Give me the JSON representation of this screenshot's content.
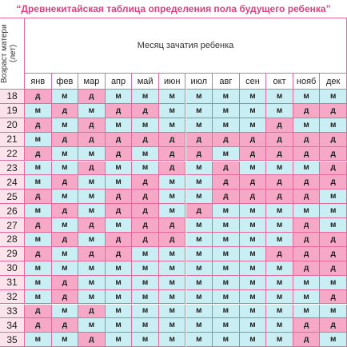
{
  "header": {
    "title": "“Древнекитайская таблица определения пола будущего ребенка”"
  },
  "table": {
    "row_header": "Возраст матери (лет)",
    "column_header": "Месяц зачатия ребенка",
    "months": [
      "янв",
      "фев",
      "мар",
      "апр",
      "май",
      "июн",
      "июл",
      "авг",
      "сен",
      "окт",
      "нояб",
      "дек"
    ],
    "rows": [
      {
        "age": 18,
        "cells": [
          "д",
          "м",
          "д",
          "м",
          "м",
          "м",
          "м",
          "м",
          "м",
          "м",
          "м",
          "м"
        ]
      },
      {
        "age": 19,
        "cells": [
          "м",
          "д",
          "м",
          "д",
          "д",
          "м",
          "м",
          "м",
          "м",
          "м",
          "д",
          "д"
        ]
      },
      {
        "age": 20,
        "cells": [
          "д",
          "м",
          "д",
          "м",
          "м",
          "м",
          "м",
          "м",
          "м",
          "д",
          "м",
          "м"
        ]
      },
      {
        "age": 21,
        "cells": [
          "м",
          "д",
          "д",
          "д",
          "д",
          "д",
          "д",
          "д",
          "д",
          "д",
          "д",
          "д"
        ]
      },
      {
        "age": 22,
        "cells": [
          "д",
          "м",
          "м",
          "д",
          "м",
          "д",
          "д",
          "м",
          "д",
          "д",
          "д",
          "д"
        ]
      },
      {
        "age": 23,
        "cells": [
          "м",
          "м",
          "д",
          "м",
          "м",
          "д",
          "м",
          "д",
          "м",
          "м",
          "м",
          "д"
        ]
      },
      {
        "age": 24,
        "cells": [
          "м",
          "д",
          "м",
          "м",
          "д",
          "м",
          "м",
          "д",
          "д",
          "д",
          "д",
          "д"
        ]
      },
      {
        "age": 25,
        "cells": [
          "д",
          "м",
          "м",
          "д",
          "д",
          "м",
          "м",
          "д",
          "д",
          "д",
          "д",
          "м"
        ]
      },
      {
        "age": 26,
        "cells": [
          "м",
          "д",
          "м",
          "д",
          "д",
          "м",
          "д",
          "м",
          "м",
          "м",
          "м",
          "м"
        ]
      },
      {
        "age": 27,
        "cells": [
          "д",
          "м",
          "д",
          "м",
          "д",
          "д",
          "м",
          "м",
          "м",
          "м",
          "д",
          "м"
        ]
      },
      {
        "age": 28,
        "cells": [
          "м",
          "д",
          "м",
          "д",
          "д",
          "д",
          "м",
          "м",
          "м",
          "м",
          "д",
          "д"
        ]
      },
      {
        "age": 29,
        "cells": [
          "д",
          "м",
          "д",
          "д",
          "м",
          "м",
          "м",
          "м",
          "м",
          "д",
          "д",
          "д"
        ]
      },
      {
        "age": 30,
        "cells": [
          "м",
          "м",
          "м",
          "м",
          "м",
          "м",
          "м",
          "м",
          "м",
          "м",
          "д",
          "д"
        ]
      },
      {
        "age": 31,
        "cells": [
          "м",
          "д",
          "м",
          "м",
          "м",
          "м",
          "м",
          "м",
          "м",
          "м",
          "м",
          "м"
        ]
      },
      {
        "age": 32,
        "cells": [
          "м",
          "д",
          "м",
          "м",
          "м",
          "м",
          "м",
          "м",
          "м",
          "м",
          "м",
          "д"
        ]
      },
      {
        "age": 33,
        "cells": [
          "д",
          "м",
          "д",
          "м",
          "м",
          "м",
          "м",
          "м",
          "м",
          "м",
          "м",
          "м"
        ]
      },
      {
        "age": 34,
        "cells": [
          "д",
          "д",
          "м",
          "м",
          "м",
          "м",
          "м",
          "м",
          "м",
          "м",
          "д",
          "д"
        ]
      },
      {
        "age": 35,
        "cells": [
          "м",
          "м",
          "д",
          "м",
          "м",
          "м",
          "м",
          "м",
          "м",
          "м",
          "д",
          "м"
        ]
      }
    ]
  }
}
